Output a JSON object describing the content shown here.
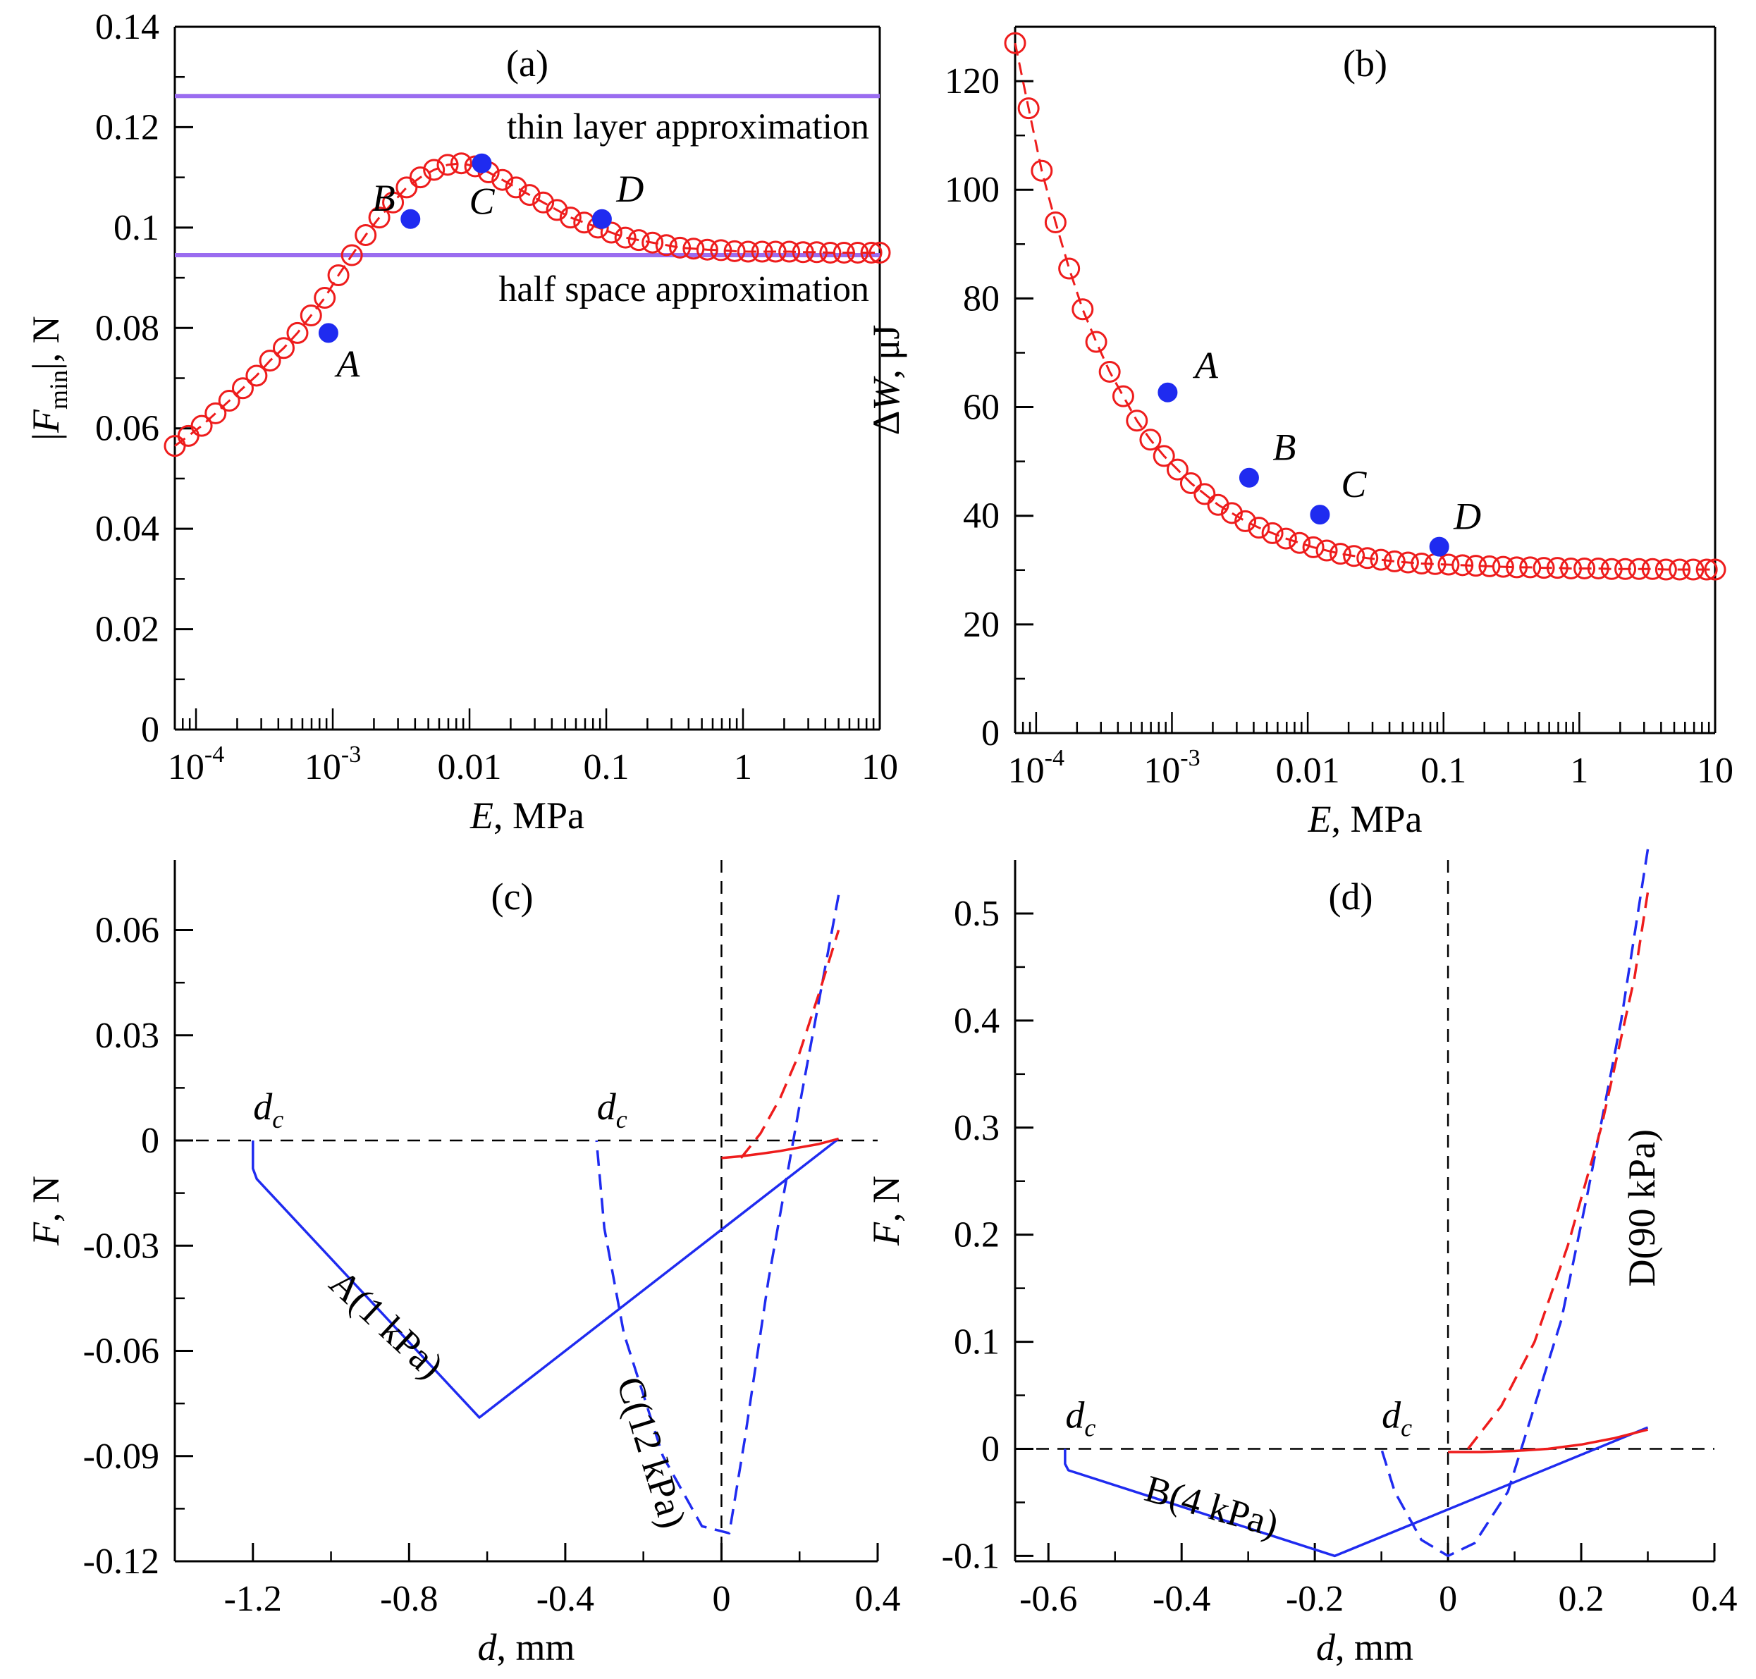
{
  "colors": {
    "red": "#ee1c1c",
    "blue": "#1f2bf0",
    "purple": "#9a6cf0",
    "black": "#000000"
  },
  "chart_data": [
    {
      "type": "scatter",
      "panel": "(a)",
      "xscale": "log",
      "xlabel": {
        "var": "E",
        "unit": ", MPa"
      },
      "ylabel": {
        "pre": "|",
        "var": "F",
        "sub": "min",
        "post": "|, N"
      },
      "xlim": [
        7e-05,
        10
      ],
      "ylim": [
        0,
        0.14
      ],
      "xticks": [
        {
          "value": 0.0001,
          "base": "10",
          "exp": "-4"
        },
        {
          "value": 0.001,
          "base": "10",
          "exp": "-3"
        },
        {
          "value": 0.01,
          "base": "0.01",
          "exp": ""
        },
        {
          "value": 0.1,
          "base": "0.1",
          "exp": ""
        },
        {
          "value": 1,
          "base": "1",
          "exp": ""
        },
        {
          "value": 10,
          "base": "10",
          "exp": ""
        }
      ],
      "yticks": [
        {
          "value": 0,
          "label": "0"
        },
        {
          "value": 0.02,
          "label": "0.02"
        },
        {
          "value": 0.04,
          "label": "0.04"
        },
        {
          "value": 0.06,
          "label": "0.06"
        },
        {
          "value": 0.08,
          "label": "0.08"
        },
        {
          "value": 0.1,
          "label": "0.1"
        },
        {
          "value": 0.12,
          "label": "0.12"
        },
        {
          "value": 0.14,
          "label": "0.14"
        }
      ],
      "hlines": [
        {
          "value": 0.1262,
          "label": "thin layer approximation"
        },
        {
          "value": 0.0945,
          "label": "half space approximation"
        }
      ],
      "series": [
        {
          "name": "computed",
          "x": [
            7e-05,
            8.8e-05,
            0.00011,
            0.000139,
            0.000175,
            0.00022,
            0.000277,
            0.000348,
            0.000438,
            0.000552,
            0.000694,
            0.000874,
            0.0011,
            0.00138,
            0.00174,
            0.00219,
            0.00276,
            0.00347,
            0.00437,
            0.0055,
            0.00692,
            0.00871,
            0.011,
            0.0138,
            0.0174,
            0.0219,
            0.0275,
            0.0346,
            0.0436,
            0.0548,
            0.069,
            0.0869,
            0.109,
            0.138,
            0.173,
            0.218,
            0.275,
            0.346,
            0.435,
            0.548,
            0.69,
            0.868,
            1.09,
            1.38,
            1.73,
            2.18,
            2.75,
            3.46,
            4.35,
            5.48,
            6.9,
            8.68,
            10
          ],
          "y": [
            0.0565,
            0.0585,
            0.0605,
            0.063,
            0.0655,
            0.068,
            0.0705,
            0.0735,
            0.076,
            0.079,
            0.0825,
            0.086,
            0.0905,
            0.0945,
            0.0985,
            0.102,
            0.105,
            0.108,
            0.11,
            0.1115,
            0.1125,
            0.1128,
            0.1122,
            0.111,
            0.1095,
            0.108,
            0.1065,
            0.105,
            0.1035,
            0.102,
            0.101,
            0.1,
            0.099,
            0.098,
            0.0975,
            0.097,
            0.0965,
            0.096,
            0.0958,
            0.0956,
            0.0955,
            0.0953,
            0.0952,
            0.0952,
            0.0952,
            0.0952,
            0.0951,
            0.0951,
            0.095,
            0.095,
            0.095,
            0.095,
            0.095
          ]
        },
        {
          "name": "marked",
          "points": [
            {
              "label": "A",
              "x": 0.00093,
              "y": 0.079
            },
            {
              "label": "B",
              "x": 0.0037,
              "y": 0.1017
            },
            {
              "label": "C",
              "x": 0.0123,
              "y": 0.1128
            },
            {
              "label": "D",
              "x": 0.093,
              "y": 0.1017
            }
          ]
        }
      ]
    },
    {
      "type": "scatter",
      "panel": "(b)",
      "xscale": "log",
      "xlabel": {
        "var": "E",
        "unit": ", MPa"
      },
      "ylabel": {
        "pre": "Δ",
        "var": "W",
        "unit": ", μJ"
      },
      "xlim": [
        7e-05,
        10
      ],
      "ylim": [
        0,
        130
      ],
      "xticks": [
        {
          "value": 0.0001,
          "base": "10",
          "exp": "-4"
        },
        {
          "value": 0.001,
          "base": "10",
          "exp": "-3"
        },
        {
          "value": 0.01,
          "base": "0.01",
          "exp": ""
        },
        {
          "value": 0.1,
          "base": "0.1",
          "exp": ""
        },
        {
          "value": 1,
          "base": "1",
          "exp": ""
        },
        {
          "value": 10,
          "base": "10",
          "exp": ""
        }
      ],
      "yticks": [
        {
          "value": 0,
          "label": "0"
        },
        {
          "value": 20,
          "label": "20"
        },
        {
          "value": 40,
          "label": "40"
        },
        {
          "value": 60,
          "label": "60"
        },
        {
          "value": 80,
          "label": "80"
        },
        {
          "value": 100,
          "label": "100"
        },
        {
          "value": 120,
          "label": "120"
        }
      ],
      "series": [
        {
          "name": "computed",
          "x": [
            7e-05,
            8.8e-05,
            0.00011,
            0.000139,
            0.000175,
            0.00022,
            0.000277,
            0.000348,
            0.000438,
            0.000552,
            0.000694,
            0.000874,
            0.0011,
            0.00138,
            0.00174,
            0.00219,
            0.00276,
            0.00347,
            0.00437,
            0.0055,
            0.00692,
            0.00871,
            0.011,
            0.0138,
            0.0174,
            0.0219,
            0.0275,
            0.0346,
            0.0436,
            0.0548,
            0.069,
            0.0869,
            0.109,
            0.138,
            0.173,
            0.218,
            0.275,
            0.346,
            0.435,
            0.548,
            0.69,
            0.868,
            1.09,
            1.38,
            1.73,
            2.18,
            2.75,
            3.46,
            4.35,
            5.48,
            6.9,
            8.68,
            10
          ],
          "y": [
            127,
            115,
            103.5,
            94,
            85.5,
            78,
            72,
            66.5,
            62,
            57.5,
            54,
            51,
            48.5,
            46,
            44,
            42,
            40.5,
            39,
            37.8,
            36.8,
            35.8,
            35,
            34.2,
            33.6,
            33,
            32.6,
            32.2,
            31.9,
            31.6,
            31.4,
            31.2,
            31.1,
            31,
            30.9,
            30.8,
            30.7,
            30.6,
            30.5,
            30.5,
            30.4,
            30.4,
            30.3,
            30.3,
            30.3,
            30.2,
            30.2,
            30.2,
            30.2,
            30.1,
            30.1,
            30.1,
            30.1,
            30.1
          ]
        },
        {
          "name": "marked",
          "points": [
            {
              "label": "A",
              "x": 0.00093,
              "y": 62.7
            },
            {
              "label": "B",
              "x": 0.0037,
              "y": 47
            },
            {
              "label": "C",
              "x": 0.0123,
              "y": 40.2
            },
            {
              "label": "D",
              "x": 0.093,
              "y": 34.3
            }
          ]
        }
      ]
    },
    {
      "type": "line",
      "panel": "(c)",
      "xlabel": {
        "var": "d",
        "unit": ", mm"
      },
      "ylabel": {
        "var": "F",
        "unit": ", N"
      },
      "xlim": [
        -1.4,
        0.4
      ],
      "ylim": [
        -0.12,
        0.08
      ],
      "xticks": [
        {
          "value": -1.2,
          "label": "-1.2"
        },
        {
          "value": -0.8,
          "label": "-0.8"
        },
        {
          "value": -0.4,
          "label": "-0.4"
        },
        {
          "value": 0,
          "label": "0"
        },
        {
          "value": 0.4,
          "label": "0.4"
        }
      ],
      "yticks": [
        {
          "value": -0.12,
          "label": "-0.12"
        },
        {
          "value": -0.09,
          "label": "-0.09"
        },
        {
          "value": -0.06,
          "label": "-0.06"
        },
        {
          "value": -0.03,
          "label": "-0.03"
        },
        {
          "value": 0,
          "label": "0"
        },
        {
          "value": 0.03,
          "label": "0.03"
        },
        {
          "value": 0.06,
          "label": "0.06"
        }
      ],
      "dc_labels": [
        {
          "text": "d",
          "sub": "c",
          "x": -1.2
        },
        {
          "text": "d",
          "sub": "c",
          "x": -0.32
        }
      ],
      "series": [
        {
          "name": "A(1 kPa)",
          "style": "solid",
          "color": "blue",
          "x": [
            0.3,
            -0.62,
            -1.19,
            -1.2,
            -1.2
          ],
          "y": [
            0.0005,
            -0.079,
            -0.011,
            -0.008,
            0
          ]
        },
        {
          "name": "C(12 kPa)",
          "style": "dashed",
          "color": "blue",
          "x": [
            0.3,
            0.2,
            0.12,
            0.06,
            0.02,
            -0.05,
            -0.15,
            -0.25,
            -0.3,
            -0.32
          ],
          "y": [
            0.07,
            0.01,
            -0.04,
            -0.085,
            -0.112,
            -0.11,
            -0.09,
            -0.055,
            -0.025,
            0
          ]
        },
        {
          "name": "red-dashed",
          "style": "dashed",
          "color": "red",
          "x": [
            0.05,
            0.1,
            0.15,
            0.2,
            0.25,
            0.3
          ],
          "y": [
            -0.005,
            0.002,
            0.012,
            0.025,
            0.042,
            0.06
          ]
        },
        {
          "name": "red-solid",
          "style": "solid",
          "color": "red",
          "x": [
            0,
            0.05,
            0.1,
            0.15,
            0.2,
            0.25,
            0.3
          ],
          "y": [
            -0.005,
            -0.0045,
            -0.0038,
            -0.003,
            -0.002,
            -0.001,
            0.0005
          ]
        }
      ]
    },
    {
      "type": "line",
      "panel": "(d)",
      "xlabel": {
        "var": "d",
        "unit": ", mm"
      },
      "ylabel": {
        "var": "F",
        "unit": ", N"
      },
      "xlim": [
        -0.65,
        0.4
      ],
      "ylim": [
        -0.105,
        0.55
      ],
      "xticks": [
        {
          "value": -0.6,
          "label": "-0.6"
        },
        {
          "value": -0.4,
          "label": "-0.4"
        },
        {
          "value": -0.2,
          "label": "-0.2"
        },
        {
          "value": 0,
          "label": "0"
        },
        {
          "value": 0.2,
          "label": "0.2"
        },
        {
          "value": 0.4,
          "label": "0.4"
        }
      ],
      "yticks": [
        {
          "value": -0.1,
          "label": "-0.1"
        },
        {
          "value": 0,
          "label": "0"
        },
        {
          "value": 0.1,
          "label": "0.1"
        },
        {
          "value": 0.2,
          "label": "0.2"
        },
        {
          "value": 0.3,
          "label": "0.3"
        },
        {
          "value": 0.4,
          "label": "0.4"
        },
        {
          "value": 0.5,
          "label": "0.5"
        }
      ],
      "dc_labels": [
        {
          "text": "d",
          "sub": "c",
          "x": -0.575
        },
        {
          "text": "d",
          "sub": "c",
          "x": -0.1
        }
      ],
      "series": [
        {
          "name": "B(4 kPa)",
          "style": "solid",
          "color": "blue",
          "x": [
            0.3,
            -0.17,
            -0.57,
            -0.575,
            -0.575
          ],
          "y": [
            0.02,
            -0.1,
            -0.02,
            -0.014,
            0
          ]
        },
        {
          "name": "D(90 kPa)",
          "style": "dashed",
          "color": "blue",
          "x": [
            0.3,
            0.26,
            0.21,
            0.17,
            0.13,
            0.09,
            0.04,
            0,
            -0.04,
            -0.08,
            -0.1
          ],
          "y": [
            0.56,
            0.4,
            0.24,
            0.12,
            0.04,
            -0.04,
            -0.088,
            -0.1,
            -0.085,
            -0.04,
            0
          ]
        },
        {
          "name": "red-dashed",
          "style": "dashed",
          "color": "red",
          "x": [
            0.03,
            0.08,
            0.13,
            0.18,
            0.23,
            0.28,
            0.3
          ],
          "y": [
            0,
            0.04,
            0.1,
            0.19,
            0.3,
            0.44,
            0.52
          ]
        },
        {
          "name": "red-solid",
          "style": "solid",
          "color": "red",
          "x": [
            0,
            0.05,
            0.1,
            0.15,
            0.2,
            0.25,
            0.3
          ],
          "y": [
            -0.003,
            -0.003,
            -0.002,
            0,
            0.004,
            0.01,
            0.018
          ]
        }
      ]
    }
  ]
}
